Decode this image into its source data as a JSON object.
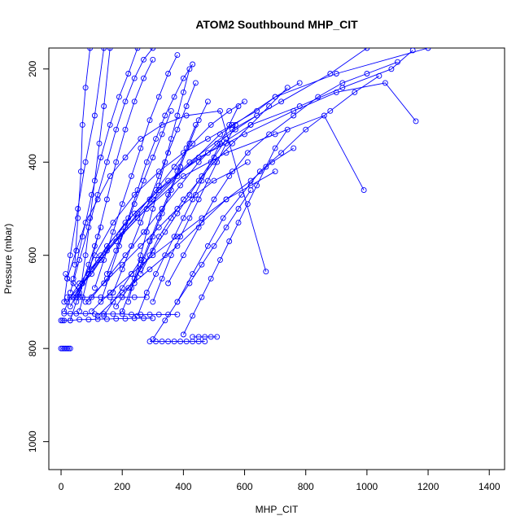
{
  "chart_data": {
    "type": "line",
    "title": "ATOM2 Southbound MHP_CIT",
    "xlabel": "MHP_CIT",
    "ylabel": "Pressure (mbar)",
    "xlim": [
      -40,
      1450
    ],
    "ylim": [
      1060,
      155
    ],
    "y_reversed": true,
    "grid": false,
    "legend": "none",
    "x_ticks": [
      0,
      200,
      400,
      600,
      800,
      1000,
      1200,
      1400
    ],
    "y_ticks": [
      200,
      400,
      600,
      800,
      1000
    ],
    "colors": {
      "series": "#0000ff",
      "axes": "#000000",
      "background": "#ffffff"
    },
    "series": [
      {
        "x": [
          0,
          5,
          10,
          15,
          20,
          25,
          30
        ],
        "y": [
          800,
          800,
          800,
          800,
          800,
          800,
          800
        ]
      },
      {
        "x": [
          0,
          5,
          10,
          30,
          60,
          90,
          120,
          150,
          180,
          210,
          240,
          270,
          300
        ],
        "y": [
          740,
          740,
          740,
          740,
          738,
          738,
          737,
          737,
          736,
          736,
          735,
          735,
          735
        ]
      },
      {
        "x": [
          10,
          30,
          50,
          80,
          110,
          140,
          170,
          200,
          230,
          260,
          290,
          320,
          350,
          380
        ],
        "y": [
          725,
          725,
          725,
          725,
          726,
          726,
          726,
          726,
          727,
          727,
          727,
          727,
          727,
          727
        ]
      },
      {
        "x": [
          20,
          40,
          70,
          100,
          130,
          160,
          200,
          240,
          280
        ],
        "y": [
          690,
          690,
          690,
          690,
          690,
          690,
          690,
          690,
          690
        ]
      },
      {
        "x": [
          290,
          310,
          330,
          350,
          370,
          390,
          410,
          430,
          450,
          470
        ],
        "y": [
          785,
          785,
          785,
          785,
          785,
          785,
          785,
          785,
          785,
          785
        ]
      },
      {
        "x": [
          430,
          450,
          470,
          490,
          510
        ],
        "y": [
          775,
          775,
          775,
          775,
          775
        ]
      },
      {
        "x": [
          15,
          20,
          40,
          60
        ],
        "y": [
          640,
          650,
          660,
          680
        ]
      },
      {
        "x": [
          10,
          30,
          100,
          150,
          250,
          380,
          520,
          700,
          900,
          1200
        ],
        "y": [
          720,
          690,
          640,
          590,
          520,
          430,
          340,
          260,
          210,
          155
        ]
      },
      {
        "x": [
          20,
          60,
          120,
          200,
          300,
          420,
          560,
          720,
          880,
          1000
        ],
        "y": [
          700,
          660,
          610,
          550,
          480,
          400,
          330,
          270,
          210,
          155
        ]
      },
      {
        "x": [
          40,
          90,
          150,
          240,
          350,
          480,
          620,
          780,
          920,
          1080,
          1150
        ],
        "y": [
          690,
          640,
          580,
          510,
          440,
          380,
          320,
          280,
          240,
          200,
          160
        ]
      },
      {
        "x": [
          30,
          70,
          130,
          210,
          320,
          450,
          600,
          760,
          900,
          1060,
          1160
        ],
        "y": [
          710,
          660,
          600,
          530,
          460,
          390,
          340,
          290,
          250,
          230,
          312
        ]
      },
      {
        "x": [
          50,
          100,
          180,
          280,
          400,
          540,
          700,
          860,
          990
        ],
        "y": [
          690,
          630,
          570,
          500,
          430,
          380,
          340,
          300,
          460
        ]
      },
      {
        "x": [
          60,
          110,
          170,
          240,
          320,
          400,
          480,
          560,
          640,
          700,
          780
        ],
        "y": [
          670,
          600,
          530,
          470,
          420,
          380,
          350,
          320,
          290,
          260,
          230
        ]
      },
      {
        "x": [
          20,
          50,
          80,
          120,
          160,
          210,
          260,
          330,
          410,
          520,
          670
        ],
        "y": [
          650,
          590,
          530,
          480,
          430,
          390,
          350,
          320,
          300,
          290,
          635
        ]
      },
      {
        "x": [
          30,
          60,
          90,
          120,
          150,
          180,
          210,
          240,
          270,
          300
        ],
        "y": [
          680,
          610,
          540,
          470,
          400,
          330,
          270,
          220,
          180,
          155
        ]
      },
      {
        "x": [
          40,
          70,
          100,
          130,
          160,
          190,
          220,
          250
        ],
        "y": [
          650,
          560,
          470,
          390,
          320,
          260,
          210,
          155
        ]
      },
      {
        "x": [
          10,
          30,
          55,
          80,
          110,
          140
        ],
        "y": [
          700,
          600,
          500,
          400,
          300,
          155
        ]
      },
      {
        "x": [
          60,
          80,
          95,
          110,
          125,
          140,
          160
        ],
        "y": [
          690,
          600,
          520,
          440,
          360,
          280,
          155
        ]
      },
      {
        "x": [
          45,
          55,
          65,
          70,
          80,
          95
        ],
        "y": [
          620,
          520,
          420,
          320,
          240,
          155
        ]
      },
      {
        "x": [
          80,
          140,
          200,
          260,
          320,
          380,
          440,
          500,
          560,
          610
        ],
        "y": [
          700,
          660,
          620,
          580,
          540,
          500,
          470,
          440,
          420,
          400
        ]
      },
      {
        "x": [
          100,
          160,
          230,
          300,
          380,
          460,
          540,
          620,
          700
        ],
        "y": [
          720,
          680,
          640,
          600,
          560,
          520,
          480,
          450,
          420
        ]
      },
      {
        "x": [
          120,
          200,
          290,
          380,
          460,
          540,
          620,
          690,
          760
        ],
        "y": [
          730,
          680,
          630,
          580,
          530,
          480,
          440,
          400,
          370
        ]
      },
      {
        "x": [
          70,
          130,
          190,
          250,
          310,
          370,
          430,
          490,
          550,
          600
        ],
        "y": [
          660,
          610,
          560,
          510,
          460,
          410,
          360,
          320,
          290,
          270
        ]
      },
      {
        "x": [
          90,
          150,
          210,
          270,
          330,
          390,
          450,
          510,
          570,
          640
        ],
        "y": [
          700,
          650,
          600,
          550,
          500,
          450,
          400,
          360,
          330,
          300
        ]
      },
      {
        "x": [
          150,
          180,
          210,
          240,
          270,
          300,
          330,
          360
        ],
        "y": [
          640,
          590,
          540,
          490,
          440,
          390,
          340,
          290
        ]
      },
      {
        "x": [
          200,
          230,
          260,
          290,
          320,
          350,
          380,
          410,
          440
        ],
        "y": [
          720,
          670,
          620,
          570,
          520,
          470,
          420,
          370,
          320
        ]
      },
      {
        "x": [
          250,
          280,
          310,
          340,
          370,
          400,
          430,
          460,
          490,
          520,
          550,
          580
        ],
        "y": [
          730,
          680,
          640,
          600,
          560,
          520,
          480,
          440,
          400,
          360,
          320,
          280
        ]
      },
      {
        "x": [
          300,
          330,
          360,
          390,
          420,
          450,
          480,
          510,
          540,
          570
        ],
        "y": [
          700,
          650,
          600,
          560,
          520,
          480,
          440,
          400,
          360,
          320
        ]
      },
      {
        "x": [
          170,
          200,
          230,
          260,
          290,
          320,
          350,
          380,
          410,
          440
        ],
        "y": [
          680,
          630,
          580,
          530,
          480,
          430,
          380,
          330,
          280,
          230
        ]
      },
      {
        "x": [
          130,
          160,
          190,
          220,
          250,
          280,
          310,
          340,
          370,
          400,
          430
        ],
        "y": [
          700,
          640,
          580,
          520,
          460,
          400,
          350,
          300,
          260,
          220,
          190
        ]
      },
      {
        "x": [
          110,
          140,
          170,
          200,
          230,
          260,
          290,
          320,
          350,
          380
        ],
        "y": [
          670,
          610,
          550,
          490,
          430,
          370,
          310,
          260,
          210,
          170
        ]
      },
      {
        "x": [
          60,
          90,
          120,
          150,
          180,
          210,
          240,
          270,
          300
        ],
        "y": [
          720,
          640,
          560,
          480,
          400,
          330,
          270,
          220,
          180
        ]
      },
      {
        "x": [
          220,
          240,
          260,
          280,
          300,
          320,
          340,
          360,
          380,
          400,
          420
        ],
        "y": [
          700,
          650,
          600,
          550,
          500,
          450,
          400,
          350,
          300,
          250,
          200
        ]
      },
      {
        "x": [
          240,
          270,
          300,
          330,
          360,
          390,
          420,
          450,
          480
        ],
        "y": [
          660,
          610,
          560,
          510,
          460,
          410,
          360,
          310,
          270
        ]
      },
      {
        "x": [
          180,
          220,
          260,
          300,
          340,
          380,
          420,
          460,
          500,
          540
        ],
        "y": [
          710,
          670,
          630,
          590,
          550,
          510,
          470,
          430,
          390,
          350
        ]
      },
      {
        "x": [
          30,
          50,
          70,
          90,
          110,
          130
        ],
        "y": [
          740,
          700,
          660,
          620,
          580,
          540
        ]
      },
      {
        "x": [
          260,
          290,
          320,
          360,
          400,
          450,
          500,
          560,
          620,
          680,
          740
        ],
        "y": [
          640,
          600,
          560,
          520,
          480,
          440,
          400,
          360,
          320,
          280,
          240
        ]
      },
      {
        "x": [
          140,
          170,
          200,
          230,
          260
        ],
        "y": [
          730,
          700,
          670,
          640,
          610
        ]
      },
      {
        "x": [
          350,
          400,
          450,
          500,
          550,
          610,
          680,
          760,
          840,
          920,
          1000,
          1100
        ],
        "y": [
          660,
          600,
          540,
          480,
          430,
          380,
          340,
          300,
          260,
          230,
          210,
          185
        ]
      },
      {
        "x": [
          380,
          430,
          480,
          530,
          590,
          650,
          720,
          800,
          880,
          960,
          1040
        ],
        "y": [
          700,
          640,
          580,
          520,
          470,
          420,
          380,
          330,
          290,
          250,
          215
        ]
      },
      {
        "x": [
          300,
          340,
          380,
          420,
          460,
          500,
          540,
          580,
          620
        ],
        "y": [
          780,
          740,
          700,
          660,
          620,
          580,
          540,
          500,
          460
        ]
      },
      {
        "x": [
          400,
          430,
          460,
          490,
          520,
          550,
          580,
          610,
          640,
          670,
          700,
          740
        ],
        "y": [
          770,
          730,
          690,
          650,
          610,
          570,
          530,
          490,
          450,
          410,
          370,
          330
        ]
      }
    ]
  }
}
